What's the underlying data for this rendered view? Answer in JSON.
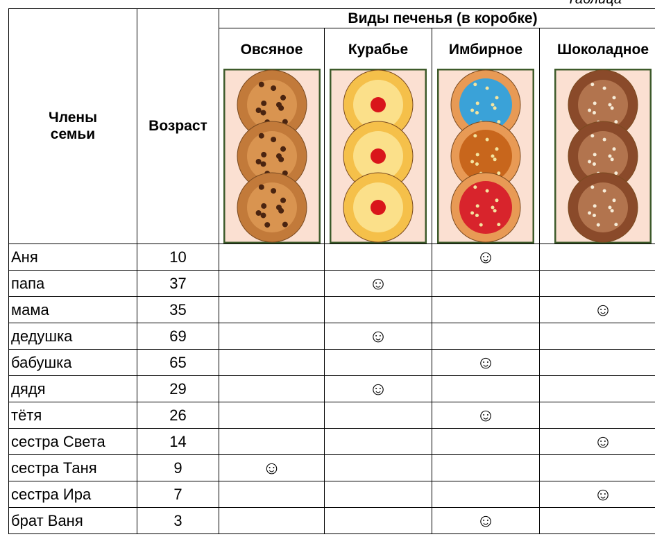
{
  "caption": "Таблица",
  "header": {
    "member": "Члены семьи",
    "age": "Возраст",
    "group": "Виды печенья (в коробке)",
    "kinds": [
      "Овсяное",
      "Курабье",
      "Имбирное",
      "Шоколадное"
    ]
  },
  "table": {
    "rows": [
      [
        "Аня",
        "10",
        null,
        null,
        "☺",
        null
      ],
      [
        "папа",
        "37",
        null,
        "☺",
        null,
        null
      ],
      [
        "мама",
        "35",
        null,
        null,
        null,
        "☺"
      ],
      [
        "дедушка",
        "69",
        null,
        "☺",
        null,
        null
      ],
      [
        "бабушка",
        "65",
        null,
        null,
        "☺",
        null
      ],
      [
        "дядя",
        "29",
        null,
        "☺",
        null,
        null
      ],
      [
        "тётя",
        "26",
        null,
        null,
        "☺",
        null
      ],
      [
        "сестра Света",
        "14",
        null,
        null,
        null,
        "☺"
      ],
      [
        "сестра Таня",
        "9",
        "☺",
        null,
        null,
        null
      ],
      [
        "сестра Ира",
        "7",
        null,
        null,
        null,
        "☺"
      ],
      [
        "брат Ваня",
        "3",
        null,
        null,
        "☺",
        null
      ]
    ]
  }
}
